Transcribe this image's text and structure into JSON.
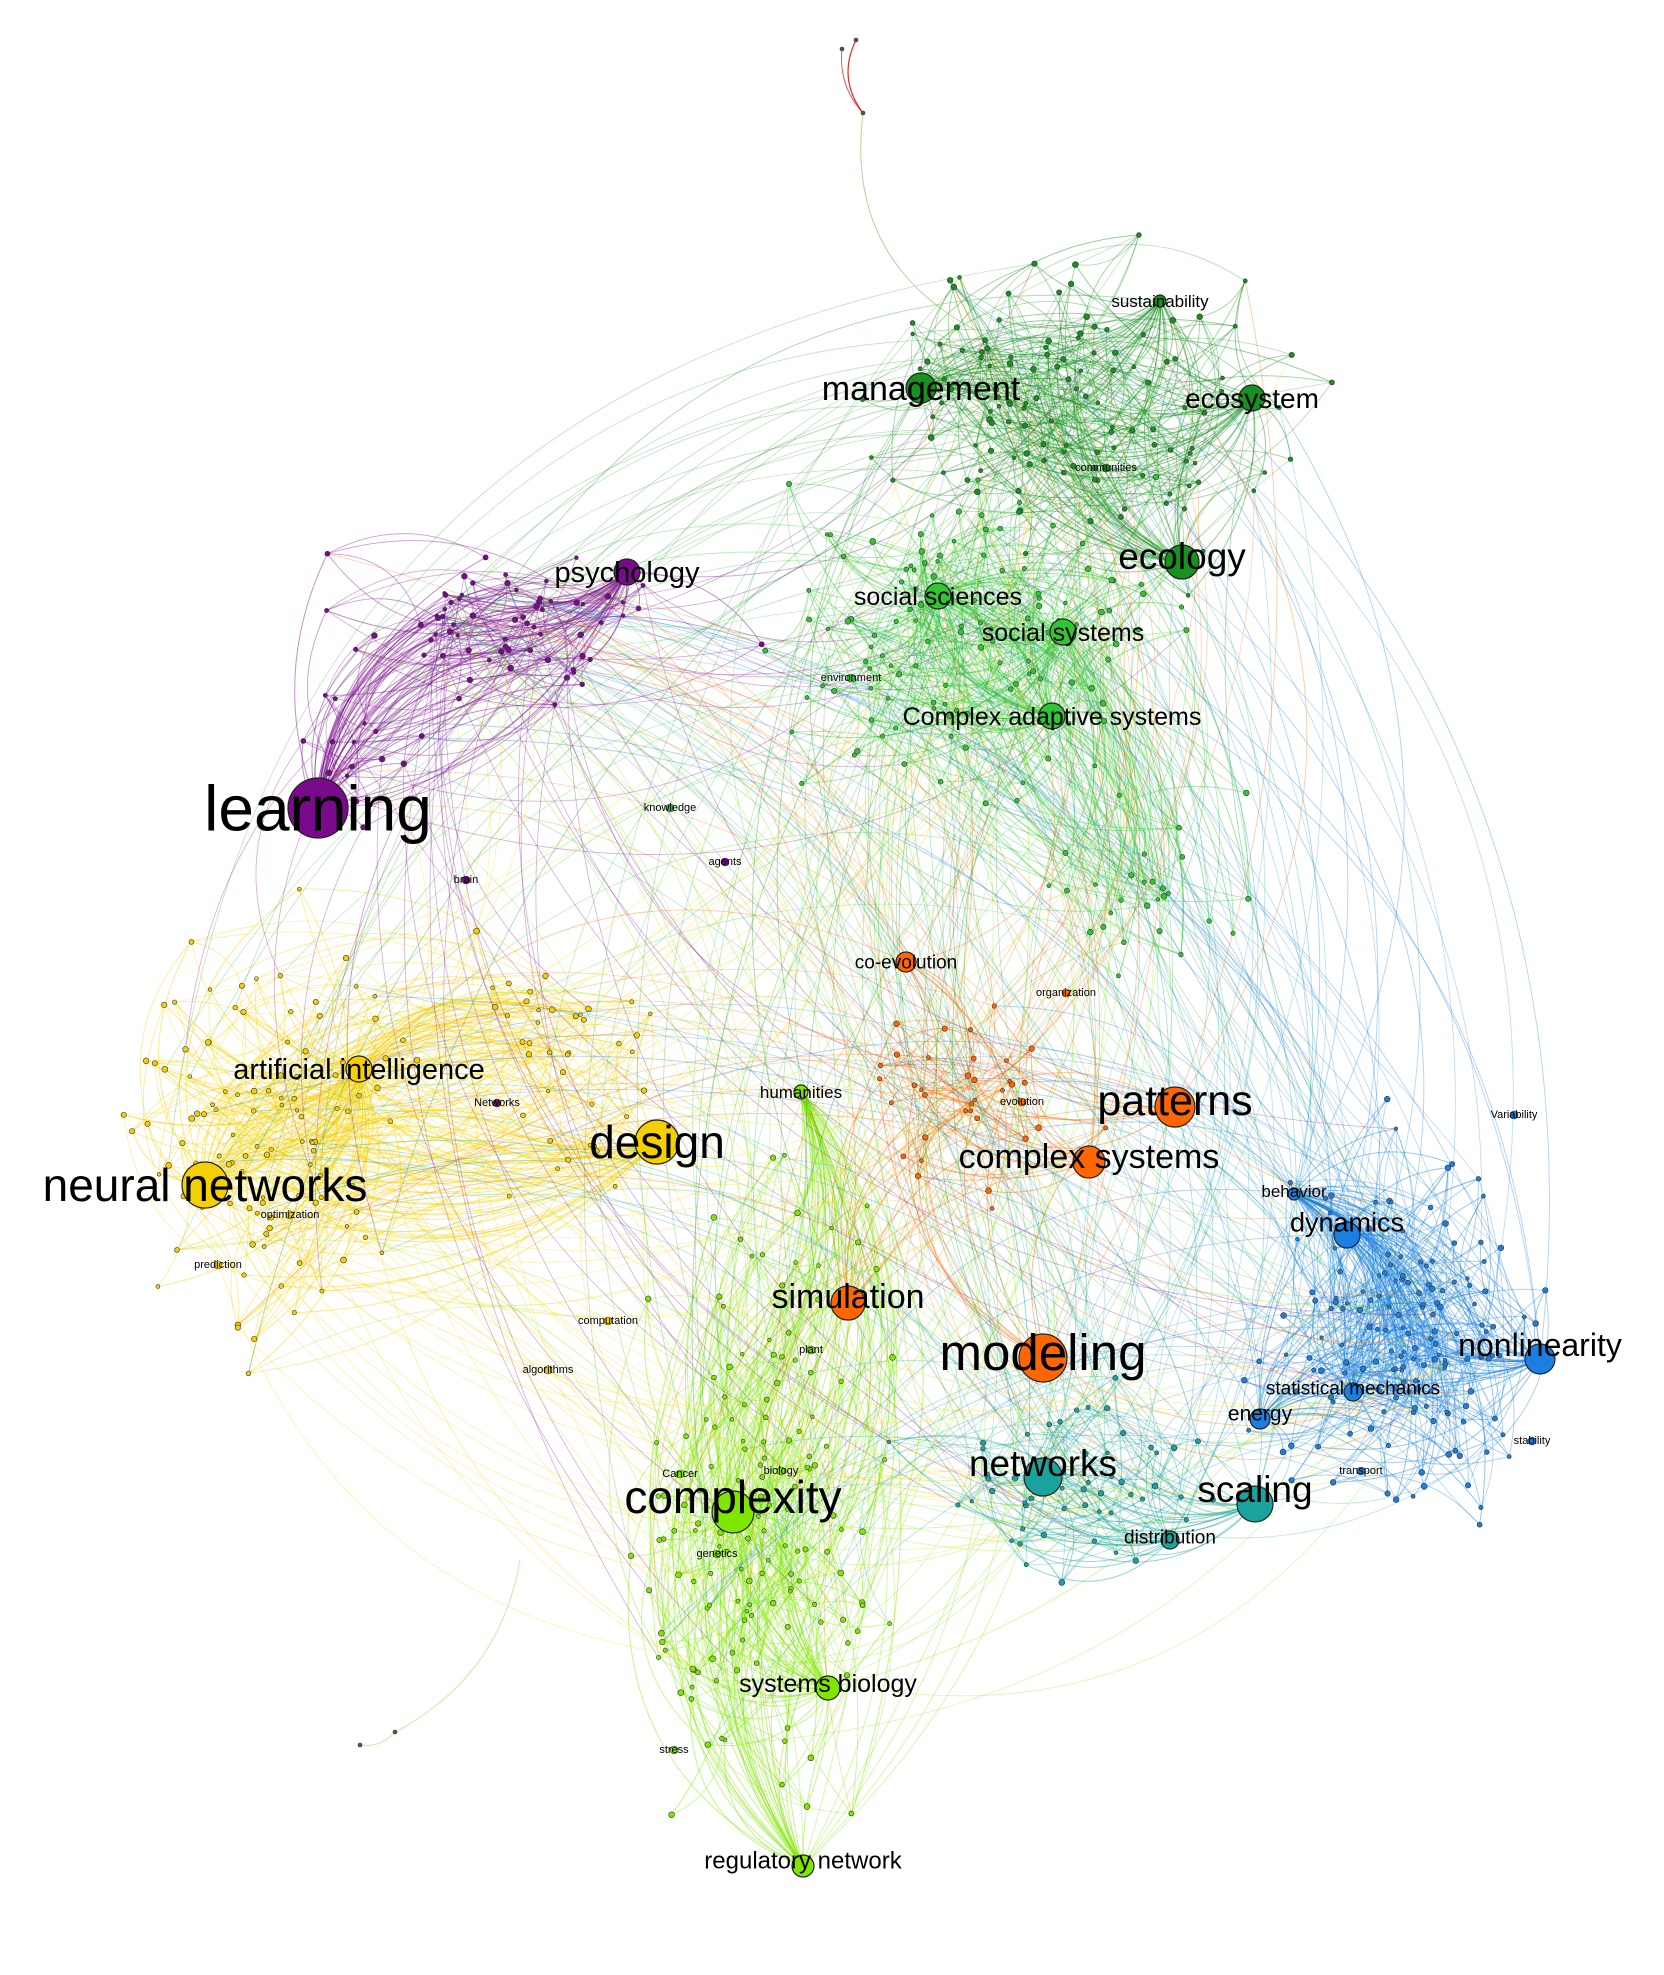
{
  "colors": {
    "purple": "#7a0a8c",
    "yellow": "#f5d000",
    "green_dark": "#17911f",
    "green": "#2fc632",
    "lime": "#7fe600",
    "orange": "#ff6600",
    "teal": "#1aa39c",
    "blue": "#1a7fe0",
    "red": "#e01515"
  },
  "nodes": [
    {
      "id": "learning",
      "label": "learning",
      "cluster": "purple"
    },
    {
      "id": "psychology",
      "label": "psychology",
      "cluster": "purple"
    },
    {
      "id": "neural_networks",
      "label": "neural networks",
      "cluster": "yellow"
    },
    {
      "id": "artificial_intelligence",
      "label": "artificial intelligence",
      "cluster": "yellow"
    },
    {
      "id": "design",
      "label": "design",
      "cluster": "yellow"
    },
    {
      "id": "management",
      "label": "management",
      "cluster": "green_dark"
    },
    {
      "id": "ecosystem",
      "label": "ecosystem",
      "cluster": "green_dark"
    },
    {
      "id": "sustainability",
      "label": "sustainability",
      "cluster": "green_dark"
    },
    {
      "id": "ecology",
      "label": "ecology",
      "cluster": "green_dark"
    },
    {
      "id": "social_sciences",
      "label": "social sciences",
      "cluster": "green"
    },
    {
      "id": "social_systems",
      "label": "social systems",
      "cluster": "green"
    },
    {
      "id": "complex_adaptive_systems",
      "label": "Complex adaptive systems",
      "cluster": "green"
    },
    {
      "id": "co_evolution",
      "label": "co-evolution",
      "cluster": "orange"
    },
    {
      "id": "patterns",
      "label": "patterns",
      "cluster": "orange"
    },
    {
      "id": "complex_systems",
      "label": "complex systems",
      "cluster": "orange"
    },
    {
      "id": "simulation",
      "label": "simulation",
      "cluster": "orange"
    },
    {
      "id": "modeling",
      "label": "modeling",
      "cluster": "orange"
    },
    {
      "id": "humanities",
      "label": "humanities",
      "cluster": "lime"
    },
    {
      "id": "complexity",
      "label": "complexity",
      "cluster": "lime"
    },
    {
      "id": "systems_biology",
      "label": "systems biology",
      "cluster": "lime"
    },
    {
      "id": "regulatory_network",
      "label": "regulatory network",
      "cluster": "lime"
    },
    {
      "id": "networks",
      "label": "networks",
      "cluster": "teal"
    },
    {
      "id": "scaling",
      "label": "scaling",
      "cluster": "teal"
    },
    {
      "id": "distribution",
      "label": "distribution",
      "cluster": "teal"
    },
    {
      "id": "dynamics",
      "label": "dynamics",
      "cluster": "blue"
    },
    {
      "id": "behavior",
      "label": "behavior",
      "cluster": "blue"
    },
    {
      "id": "nonlinearity",
      "label": "nonlinearity",
      "cluster": "blue"
    },
    {
      "id": "statistical_mechanics",
      "label": "statistical mechanics",
      "cluster": "blue"
    },
    {
      "id": "energy",
      "label": "energy",
      "cluster": "blue"
    }
  ],
  "small_labels": [
    {
      "id": "knowledge",
      "label": "knowledge",
      "cluster": "green"
    },
    {
      "id": "environment",
      "label": "environment",
      "cluster": "green"
    },
    {
      "id": "communities",
      "label": "communities",
      "cluster": "green_dark"
    },
    {
      "id": "agents",
      "label": "agents",
      "cluster": "purple"
    },
    {
      "id": "brain",
      "label": "brain",
      "cluster": "purple"
    },
    {
      "id": "optimization",
      "label": "optimization",
      "cluster": "yellow"
    },
    {
      "id": "prediction",
      "label": "prediction",
      "cluster": "yellow"
    },
    {
      "id": "computation",
      "label": "computation",
      "cluster": "yellow"
    },
    {
      "id": "algorithms",
      "label": "algorithms",
      "cluster": "yellow"
    },
    {
      "id": "networks_small",
      "label": "Networks",
      "cluster": "purple"
    },
    {
      "id": "organization",
      "label": "organization",
      "cluster": "orange"
    },
    {
      "id": "evolution",
      "label": "evolution",
      "cluster": "orange"
    },
    {
      "id": "plant",
      "label": "plant",
      "cluster": "lime"
    },
    {
      "id": "biology",
      "label": "biology",
      "cluster": "lime"
    },
    {
      "id": "cancer",
      "label": "Cancer",
      "cluster": "lime"
    },
    {
      "id": "genetics",
      "label": "genetics",
      "cluster": "lime"
    },
    {
      "id": "stress",
      "label": "stress",
      "cluster": "lime"
    },
    {
      "id": "stability",
      "label": "stability",
      "cluster": "blue"
    },
    {
      "id": "transport",
      "label": "transport",
      "cluster": "blue"
    },
    {
      "id": "variability",
      "label": "Variability",
      "cluster": "blue"
    }
  ]
}
